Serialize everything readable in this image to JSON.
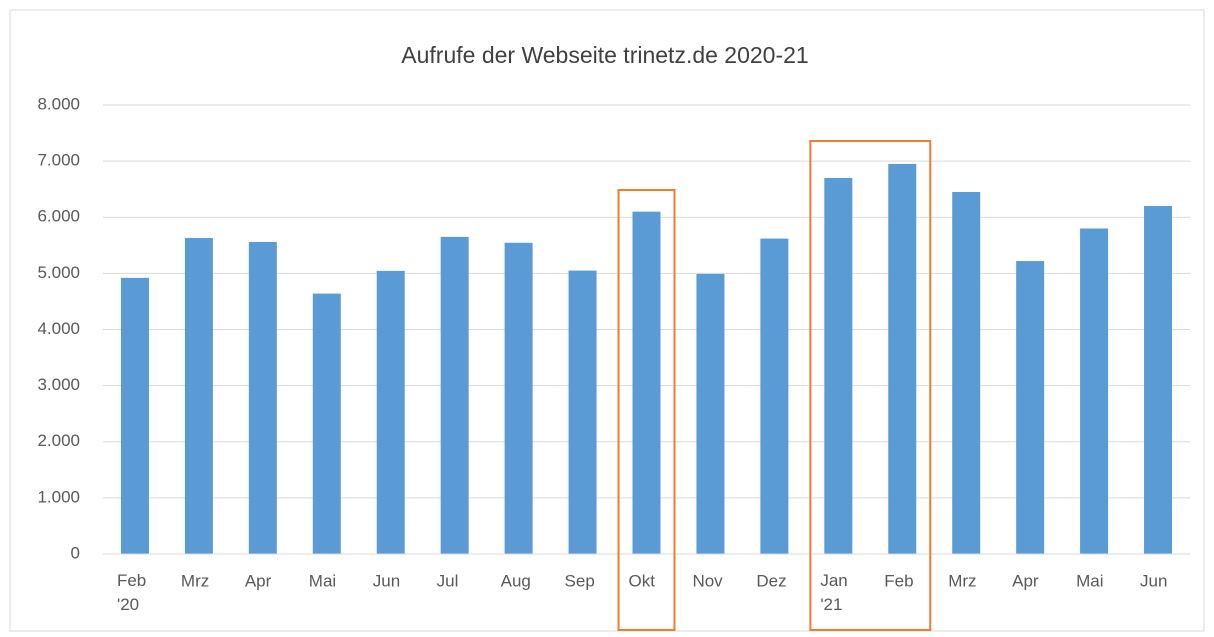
{
  "chart_data": {
    "type": "bar",
    "title": "Aufrufe der Webseite trinetz.de 2020-21",
    "categories": [
      "Feb '20",
      "Mrz",
      "Apr",
      "Mai",
      "Jun",
      "Jul",
      "Aug",
      "Sep",
      "Okt",
      "Nov",
      "Dez",
      "Jan '21",
      "Feb",
      "Mrz",
      "Apr",
      "Mai",
      "Jun"
    ],
    "values": [
      4920,
      5630,
      5560,
      4640,
      5045,
      5650,
      5545,
      5050,
      6100,
      4990,
      5620,
      6700,
      6950,
      6450,
      5220,
      5800,
      6200
    ],
    "color": "#5b9bd5",
    "ylim": [
      0,
      8000
    ],
    "yticks": [
      0,
      {
        "value": 1000,
        "label": "1.000"
      },
      {
        "value": 2000,
        "label": "2.000"
      },
      {
        "value": 3000,
        "label": "3.000"
      },
      {
        "value": 4000,
        "label": "4.000"
      },
      {
        "value": 5000,
        "label": "5.000"
      },
      {
        "value": 6000,
        "label": "6.000"
      },
      {
        "value": 7000,
        "label": "7.000"
      },
      {
        "value": 8000,
        "label": "8.000"
      }
    ],
    "grid": true
  }
}
